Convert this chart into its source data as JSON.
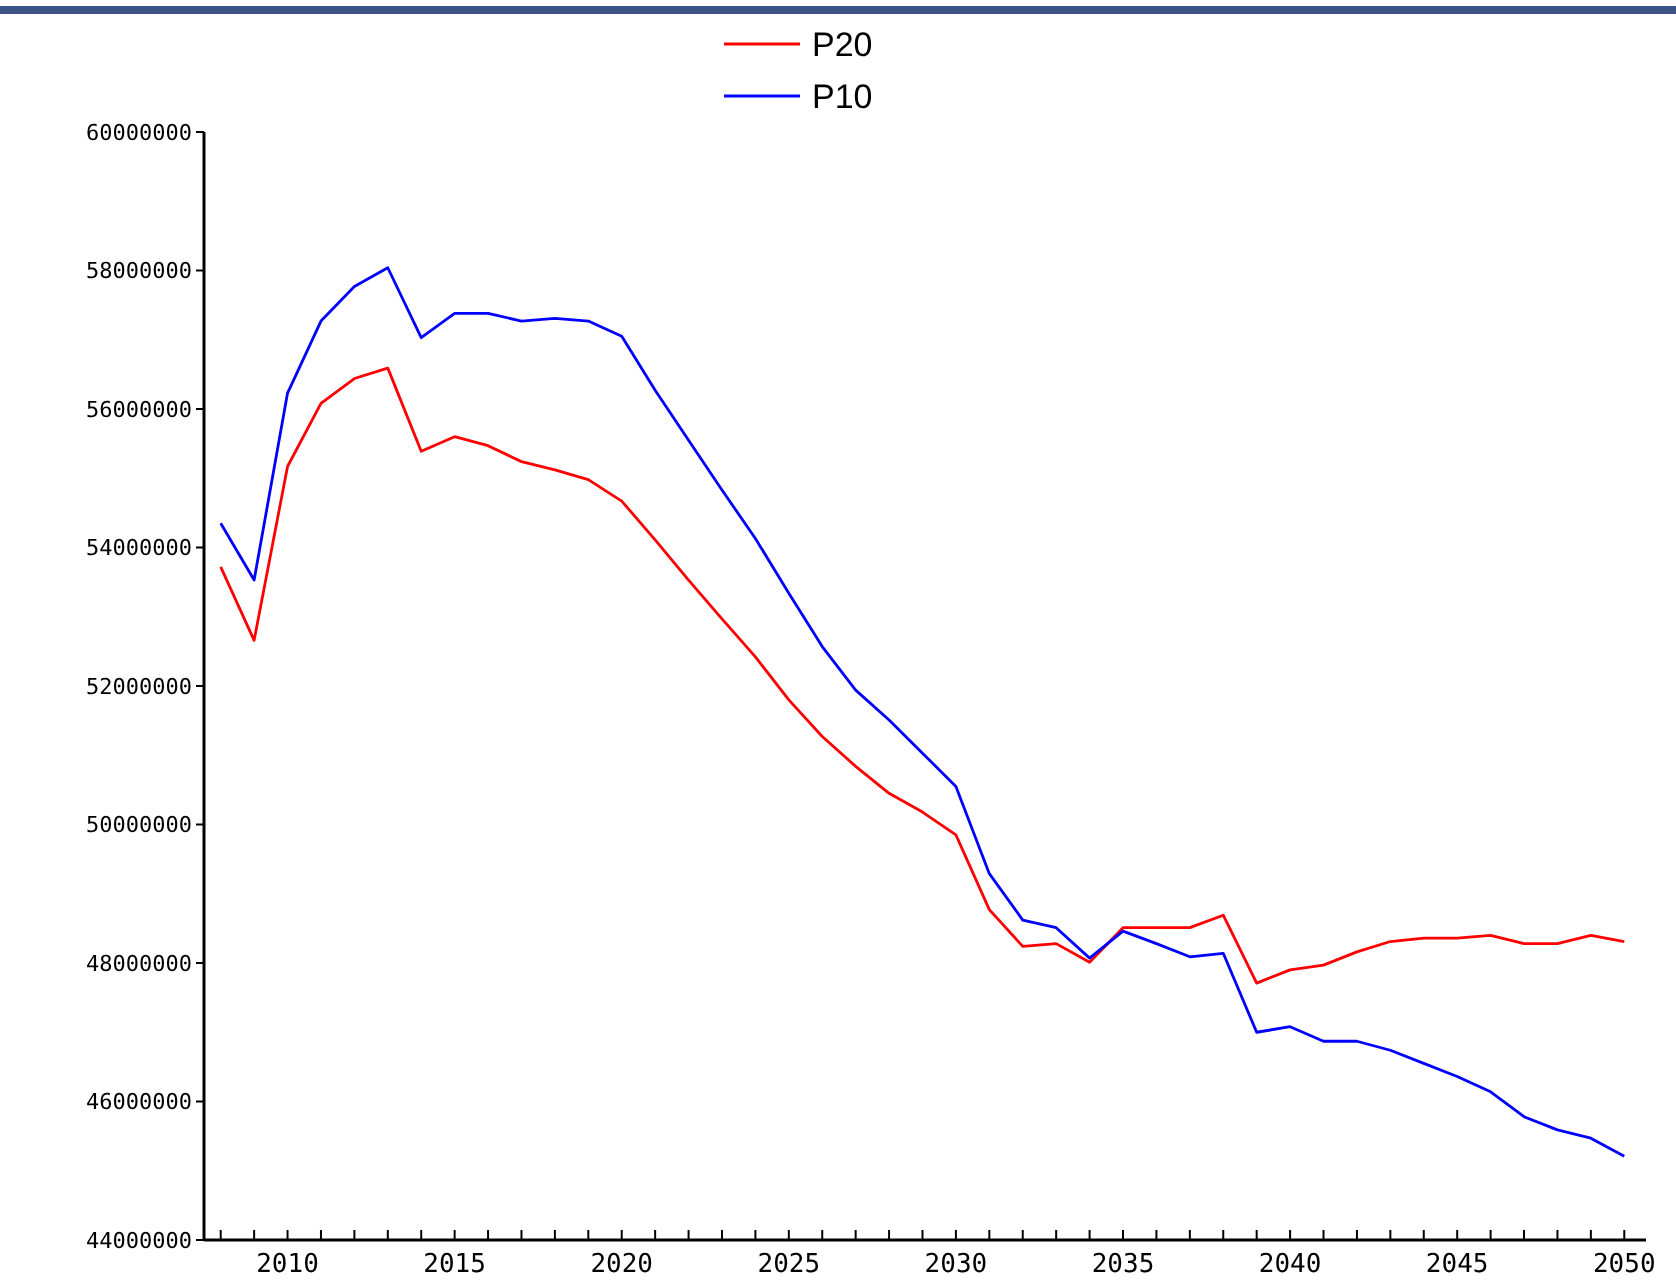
{
  "chart_data": {
    "type": "line",
    "legend": "top",
    "grid": false,
    "marker": "none",
    "line_style": "solid",
    "x": [
      2008,
      2009,
      2010,
      2011,
      2012,
      2013,
      2014,
      2015,
      2016,
      2017,
      2018,
      2019,
      2020,
      2021,
      2022,
      2023,
      2024,
      2025,
      2026,
      2027,
      2028,
      2029,
      2030,
      2031,
      2032,
      2033,
      2034,
      2035,
      2036,
      2037,
      2038,
      2039,
      2040,
      2041,
      2042,
      2043,
      2044,
      2045,
      2046,
      2047,
      2048,
      2049,
      2050
    ],
    "xlim": [
      2007.5,
      2050.65
    ],
    "xticks": [
      {
        "value": 2008,
        "label": null
      },
      {
        "value": 2009,
        "label": null
      },
      2010,
      {
        "value": 2011,
        "label": null
      },
      {
        "value": 2012,
        "label": null
      },
      {
        "value": 2013,
        "label": null
      },
      {
        "value": 2014,
        "label": null
      },
      2015,
      {
        "value": 2016,
        "label": null
      },
      {
        "value": 2017,
        "label": null
      },
      {
        "value": 2018,
        "label": null
      },
      {
        "value": 2019,
        "label": null
      },
      2020,
      {
        "value": 2021,
        "label": null
      },
      {
        "value": 2022,
        "label": null
      },
      {
        "value": 2023,
        "label": null
      },
      {
        "value": 2024,
        "label": null
      },
      2025,
      {
        "value": 2026,
        "label": null
      },
      {
        "value": 2027,
        "label": null
      },
      {
        "value": 2028,
        "label": null
      },
      {
        "value": 2029,
        "label": null
      },
      2030,
      {
        "value": 2031,
        "label": null
      },
      {
        "value": 2032,
        "label": null
      },
      {
        "value": 2033,
        "label": null
      },
      {
        "value": 2034,
        "label": null
      },
      2035,
      {
        "value": 2036,
        "label": null
      },
      {
        "value": 2037,
        "label": null
      },
      {
        "value": 2038,
        "label": null
      },
      {
        "value": 2039,
        "label": null
      },
      2040,
      {
        "value": 2041,
        "label": null
      },
      {
        "value": 2042,
        "label": null
      },
      {
        "value": 2043,
        "label": null
      },
      {
        "value": 2044,
        "label": null
      },
      2045,
      {
        "value": 2046,
        "label": null
      },
      {
        "value": 2047,
        "label": null
      },
      {
        "value": 2048,
        "label": null
      },
      {
        "value": 2049,
        "label": null
      },
      2050
    ],
    "ylim": [
      44000000,
      60000000
    ],
    "yticks": [
      44000000,
      46000000,
      48000000,
      50000000,
      52000000,
      54000000,
      56000000,
      58000000,
      60000000
    ],
    "series": [
      {
        "name": "P20",
        "color": "#ff0000",
        "values": [
          53720000,
          52660000,
          55170000,
          56080000,
          56440000,
          56590000,
          55390000,
          55600000,
          55470000,
          55240000,
          55120000,
          54980000,
          54670000,
          54110000,
          53530000,
          52970000,
          52420000,
          51800000,
          51270000,
          50840000,
          50450000,
          50180000,
          49850000,
          48770000,
          48240000,
          48280000,
          48010000,
          48510000,
          48510000,
          48510000,
          48690000,
          47710000,
          47900000,
          47970000,
          48160000,
          48310000,
          48360000,
          48360000,
          48400000,
          48280000,
          48280000,
          48400000,
          48310000
        ]
      },
      {
        "name": "P10",
        "color": "#0000ff",
        "values": [
          54350000,
          53530000,
          56230000,
          57270000,
          57770000,
          58040000,
          57030000,
          57380000,
          57380000,
          57270000,
          57310000,
          57270000,
          57050000,
          56270000,
          55550000,
          54830000,
          54130000,
          53340000,
          52570000,
          51940000,
          51510000,
          51030000,
          50550000,
          49290000,
          48620000,
          48510000,
          48070000,
          48460000,
          48280000,
          48090000,
          48140000,
          47000000,
          47080000,
          46870000,
          46870000,
          46740000,
          46550000,
          46360000,
          46140000,
          45780000,
          45590000,
          45470000,
          45210000
        ]
      }
    ]
  }
}
